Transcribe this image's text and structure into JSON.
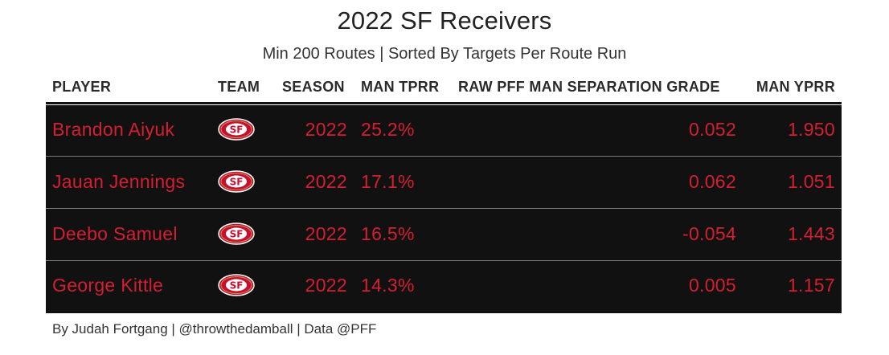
{
  "title": "2022 SF Receivers",
  "subtitle": "Min 200 Routes | Sorted By Targets Per Route Run",
  "footer": "By Judah Fortgang | @throwthedamball | Data @PFF",
  "colors": {
    "row_bg": "#111111",
    "text_accent": "#d41f33",
    "logo_red": "#c8102e",
    "logo_gold": "#b3995d"
  },
  "logo_icon": "sf-49ers-logo-icon",
  "chart_data": {
    "type": "table",
    "columns": [
      "PLAYER",
      "TEAM",
      "SEASON",
      "MAN TPRR",
      "RAW PFF MAN SEPARATION GRADE",
      "MAN YPRR"
    ],
    "rows": [
      {
        "player": "Brandon Aiyuk",
        "team": "SF",
        "season": "2022",
        "man_tprr": "25.2%",
        "sep_grade": "0.052",
        "man_yprr": "1.950"
      },
      {
        "player": "Jauan Jennings",
        "team": "SF",
        "season": "2022",
        "man_tprr": "17.1%",
        "sep_grade": "0.062",
        "man_yprr": "1.051"
      },
      {
        "player": "Deebo Samuel",
        "team": "SF",
        "season": "2022",
        "man_tprr": "16.5%",
        "sep_grade": "-0.054",
        "man_yprr": "1.443"
      },
      {
        "player": "George Kittle",
        "team": "SF",
        "season": "2022",
        "man_tprr": "14.3%",
        "sep_grade": "0.005",
        "man_yprr": "1.157"
      }
    ]
  }
}
